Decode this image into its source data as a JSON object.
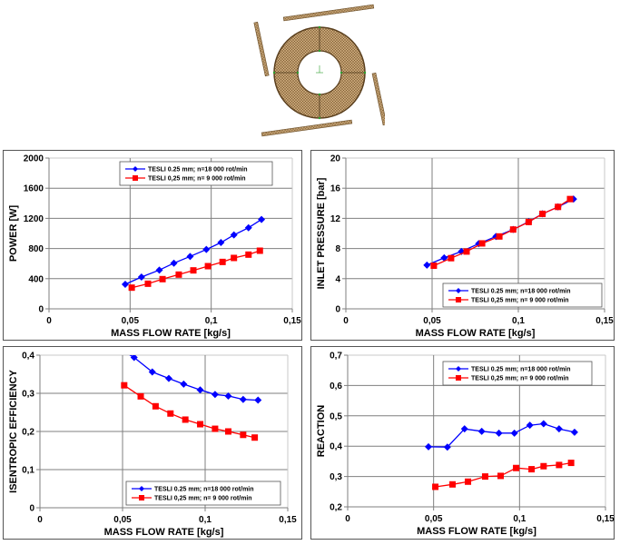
{
  "figure": {
    "image_caption": "Tesla turbine rotor mesh (annular disc with four nozzles)"
  },
  "colors": {
    "series_18000": "#0000ff",
    "series_9000": "#ff0000",
    "mesh": "#8b6b3d",
    "nodes": "#2ca02c",
    "grid": "#7f7f7f"
  },
  "chart_data": [
    {
      "id": "power",
      "type": "line",
      "title": "",
      "xlabel": "MASS FLOW RATE [kg/s]",
      "ylabel": "POWER [W]",
      "xlim": [
        0,
        0.15
      ],
      "ylim": [
        0,
        2000
      ],
      "xticks": [
        0,
        0.05,
        0.1,
        0.15
      ],
      "xtick_labels": [
        "0",
        "0,05",
        "0,1",
        "0,15"
      ],
      "yticks": [
        0,
        400,
        800,
        1200,
        1600,
        2000
      ],
      "ytick_labels": [
        "0",
        "400",
        "800",
        "1200",
        "1600",
        "2000"
      ],
      "grid": true,
      "legend_position": "top-right",
      "series": [
        {
          "name": "TESLI 0.25 mm; n=18 000 rot/min",
          "marker": "diamond",
          "color": "#0000ff",
          "x": [
            0.047,
            0.057,
            0.068,
            0.077,
            0.087,
            0.097,
            0.106,
            0.114,
            0.123,
            0.131
          ],
          "y": [
            325,
            422,
            514,
            606,
            695,
            787,
            880,
            980,
            1076,
            1185
          ]
        },
        {
          "name": "TESLI 0,25 mm; n= 9 000 rot/min",
          "marker": "square",
          "color": "#ff0000",
          "x": [
            0.051,
            0.061,
            0.07,
            0.08,
            0.089,
            0.098,
            0.107,
            0.114,
            0.123,
            0.13
          ],
          "y": [
            281,
            333,
            394,
            454,
            510,
            566,
            622,
            675,
            719,
            771
          ]
        }
      ]
    },
    {
      "id": "inlet-pressure",
      "type": "line",
      "title": "",
      "xlabel": "MASS FLOW RATE [kg/s]",
      "ylabel": "INLET PRESSURE [bar]",
      "xlim": [
        0,
        0.15
      ],
      "ylim": [
        0,
        20
      ],
      "xticks": [
        0,
        0.05,
        0.1,
        0.15
      ],
      "xtick_labels": [
        "0",
        "0,05",
        "0,1",
        "0,15"
      ],
      "yticks": [
        0,
        4,
        8,
        12,
        16,
        20
      ],
      "ytick_labels": [
        "0",
        "4",
        "8",
        "12",
        "16",
        "20"
      ],
      "grid": true,
      "legend_position": "bottom-right",
      "series": [
        {
          "name": "TESLI 0.25 mm; n=18 000 rot/min",
          "marker": "diamond",
          "color": "#0000ff",
          "x": [
            0.047,
            0.057,
            0.067,
            0.077,
            0.087,
            0.097,
            0.106,
            0.114,
            0.123,
            0.132
          ],
          "y": [
            5.8,
            6.76,
            7.6,
            8.64,
            9.6,
            10.52,
            11.56,
            12.6,
            13.52,
            14.56
          ]
        },
        {
          "name": "TESLI 0,25 mm; n= 9 000 rot/min",
          "marker": "square",
          "color": "#ff0000",
          "x": [
            0.051,
            0.061,
            0.07,
            0.079,
            0.089,
            0.097,
            0.106,
            0.114,
            0.123,
            0.13
          ],
          "y": [
            5.72,
            6.72,
            7.6,
            8.68,
            9.6,
            10.52,
            11.52,
            12.6,
            13.52,
            14.56
          ]
        }
      ]
    },
    {
      "id": "isentropic-efficiency",
      "type": "line",
      "title": "",
      "xlabel": "MASS FLOW RATE [kg/s]",
      "ylabel": "ISENTROPIC EFFICIENCY",
      "xlim": [
        0,
        0.15
      ],
      "ylim": [
        0,
        0.4
      ],
      "xticks": [
        0,
        0.05,
        0.1,
        0.15
      ],
      "xtick_labels": [
        "0",
        "0,05",
        "0,1",
        "0,15"
      ],
      "yticks": [
        0,
        0.1,
        0.2,
        0.3,
        0.4
      ],
      "ytick_labels": [
        "0",
        "0,1",
        "0,2",
        "0,3",
        "0,4"
      ],
      "grid": true,
      "legend_position": "bottom-right",
      "series": [
        {
          "name": "TESLI 0.25 mm; n=18 000 rot/min",
          "marker": "diamond",
          "color": "#0000ff",
          "x": [
            0.047,
            0.057,
            0.068,
            0.078,
            0.087,
            0.097,
            0.106,
            0.114,
            0.123,
            0.132
          ],
          "y": [
            0.42,
            0.394,
            0.356,
            0.339,
            0.324,
            0.309,
            0.297,
            0.293,
            0.284,
            0.282
          ]
        },
        {
          "name": "TESLI 0,25 mm; n= 9 000 rot/min",
          "marker": "square",
          "color": "#ff0000",
          "x": [
            0.051,
            0.061,
            0.07,
            0.079,
            0.088,
            0.097,
            0.106,
            0.114,
            0.123,
            0.13
          ],
          "y": [
            0.321,
            0.292,
            0.266,
            0.247,
            0.231,
            0.219,
            0.207,
            0.2,
            0.191,
            0.184
          ]
        }
      ]
    },
    {
      "id": "reaction",
      "type": "line",
      "title": "",
      "xlabel": "MASS FLOW RATE [kg/s]",
      "ylabel": "REACTION",
      "xlim": [
        0,
        0.15
      ],
      "ylim": [
        0.2,
        0.7
      ],
      "xticks": [
        0,
        0.05,
        0.1,
        0.15
      ],
      "xtick_labels": [
        "0",
        "0,05",
        "0,1",
        "0,15"
      ],
      "yticks": [
        0.2,
        0.3,
        0.4,
        0.5,
        0.6,
        0.7
      ],
      "ytick_labels": [
        "0,2",
        "0,3",
        "0,4",
        "0,5",
        "0,6",
        "0,7"
      ],
      "grid": true,
      "legend_position": "top-right",
      "series": [
        {
          "name": "TESLI 0.25 mm; n=18 000 rot/min",
          "marker": "diamond",
          "color": "#0000ff",
          "x": [
            0.047,
            0.058,
            0.068,
            0.078,
            0.088,
            0.097,
            0.106,
            0.114,
            0.123,
            0.132
          ],
          "y": [
            0.398,
            0.397,
            0.457,
            0.449,
            0.443,
            0.443,
            0.469,
            0.474,
            0.457,
            0.446
          ]
        },
        {
          "name": "TESLI 0,25 mm; n= 9 000 rot/min",
          "marker": "square",
          "color": "#ff0000",
          "x": [
            0.051,
            0.061,
            0.07,
            0.08,
            0.089,
            0.098,
            0.107,
            0.114,
            0.123,
            0.13
          ],
          "y": [
            0.266,
            0.274,
            0.283,
            0.3,
            0.302,
            0.328,
            0.324,
            0.334,
            0.338,
            0.345
          ]
        }
      ]
    }
  ]
}
